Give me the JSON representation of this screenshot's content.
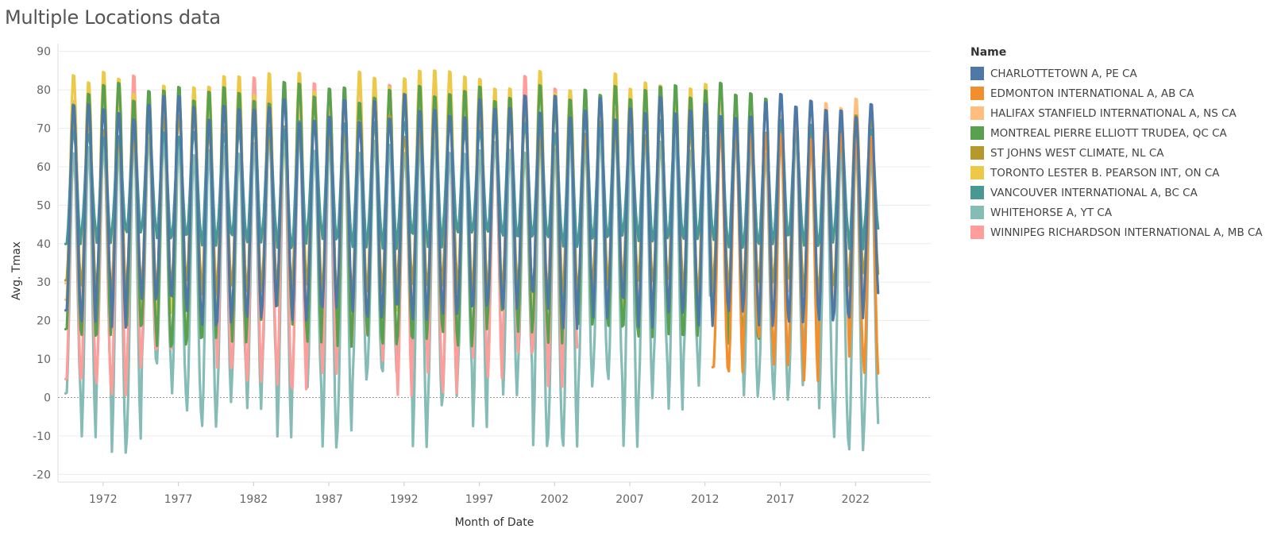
{
  "title": "Multiple Locations data",
  "legend_title": "Name",
  "chart_data": {
    "type": "line",
    "title": "Multiple Locations data",
    "xlabel": "Month of Date",
    "ylabel": "Avg. Tmax",
    "ylim": [
      -22,
      92
    ],
    "yticks": [
      90,
      80,
      70,
      60,
      50,
      40,
      30,
      20,
      10,
      0,
      -10,
      -20
    ],
    "xlim": [
      1969.5,
      2027.5
    ],
    "xticks": [
      "1972",
      "1977",
      "1982",
      "1987",
      "1992",
      "1997",
      "2002",
      "2007",
      "2012",
      "2017",
      "2022"
    ],
    "grid": "horizontal",
    "zero_line": true,
    "legend_position": "right",
    "series": [
      {
        "name": "CHARLOTTETOWN A, PE CA",
        "color": "#4e79a7",
        "period": [
          1970.0,
          2024.0
        ],
        "summer_max": [
          72,
          80
        ],
        "winter_min": [
          17,
          28
        ],
        "missing": []
      },
      {
        "name": "EDMONTON INTERNATIONAL A, AB CA",
        "color": "#f28e2b",
        "period": [
          2013.0,
          2024.0
        ],
        "summer_max": [
          68,
          76
        ],
        "winter_min": [
          3,
          22
        ],
        "missing": []
      },
      {
        "name": "HALIFAX STANFIELD INTERNATIONAL A, NS CA",
        "color": "#ffbe7d",
        "period": [
          1970.0,
          2024.0
        ],
        "summer_max": [
          73,
          79
        ],
        "winter_min": [
          22,
          30
        ],
        "missing": []
      },
      {
        "name": "MONTREAL PIERRE ELLIOTT TRUDEA, QC CA",
        "color": "#59a14f",
        "period": [
          1970.0,
          2017.0
        ],
        "summer_max": [
          77,
          83
        ],
        "winter_min": [
          12,
          24
        ],
        "missing": []
      },
      {
        "name": "ST JOHNS WEST CLIMATE, NL CA",
        "color": "#b6992d",
        "period": [
          1970.0,
          2024.0
        ],
        "summer_max": [
          68,
          74
        ],
        "winter_min": [
          26,
          32
        ],
        "missing": []
      },
      {
        "name": "TORONTO LESTER B. PEARSON INT, ON CA",
        "color": "#edc948",
        "period": [
          1970.0,
          2013.0
        ],
        "summer_max": [
          79,
          86
        ],
        "winter_min": [
          20,
          30
        ],
        "missing": []
      },
      {
        "name": "VANCOUVER INTERNATIONAL A, BC CA",
        "color": "#499894",
        "period": [
          1970.0,
          2024.0
        ],
        "summer_max": [
          68,
          73
        ],
        "winter_min": [
          38,
          44
        ],
        "missing": []
      },
      {
        "name": "WHITEHORSE A, YT CA",
        "color": "#86bcb6",
        "period": [
          1970.0,
          2024.0
        ],
        "summer_max": [
          64,
          70
        ],
        "winter_min": [
          -16,
          12
        ],
        "missing": [
          [
            2012.9,
            2014.2
          ]
        ]
      },
      {
        "name": "WINNIPEG RICHARDSON INTERNATIONAL A, MB CA",
        "color": "#ff9d9a",
        "period": [
          1970.0,
          2004.0
        ],
        "summer_max": [
          78,
          85
        ],
        "winter_min": [
          -2,
          18
        ],
        "missing": []
      }
    ]
  }
}
